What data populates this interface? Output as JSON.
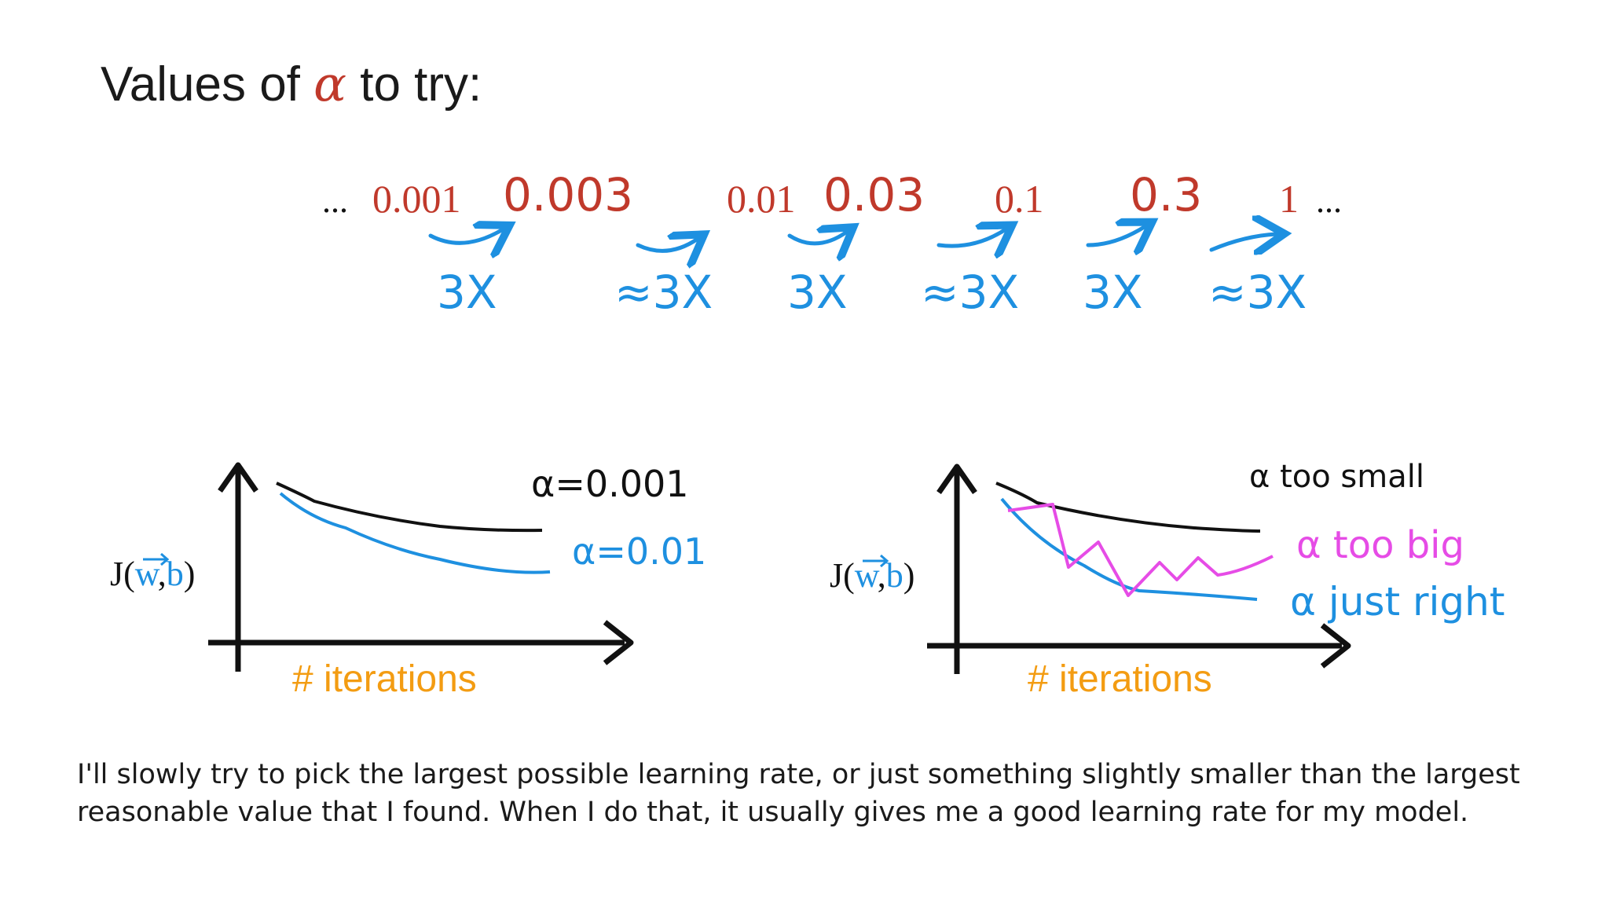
{
  "title": {
    "prefix": "Values of",
    "symbol": "α",
    "suffix": "to try:"
  },
  "sequence": {
    "leading_dots": "...",
    "trailing_dots": "...",
    "values": [
      "0.001",
      "0.003",
      "0.01",
      "0.03",
      "0.1",
      "0.3",
      "1"
    ],
    "multipliers": [
      "3X",
      "≈3X",
      "3X",
      "≈3X",
      "3X",
      "≈3X"
    ]
  },
  "plot_left": {
    "ylabel_pre": "J(",
    "ylabel_w": "w",
    "ylabel_comma": ",",
    "ylabel_b": "b",
    "ylabel_post": ")",
    "xlabel": "# iterations",
    "curve_labels": [
      "α=0.001",
      "α=0.01"
    ]
  },
  "plot_right": {
    "ylabel_pre": "J(",
    "ylabel_w": "w",
    "ylabel_comma": ",",
    "ylabel_b": "b",
    "ylabel_post": ")",
    "xlabel": "# iterations",
    "curve_labels": [
      "α too small",
      "α too big",
      "α just right"
    ]
  },
  "caption": "I'll slowly try to pick the largest possible learning rate, or just something slightly smaller than the largest reasonable value that I found. When I do that, it usually gives me a good learning rate for my model.",
  "colors": {
    "red": "#c0392b",
    "blue": "#1e90e0",
    "orange": "#f39c12",
    "magenta": "#e64ce6",
    "black": "#111111"
  }
}
